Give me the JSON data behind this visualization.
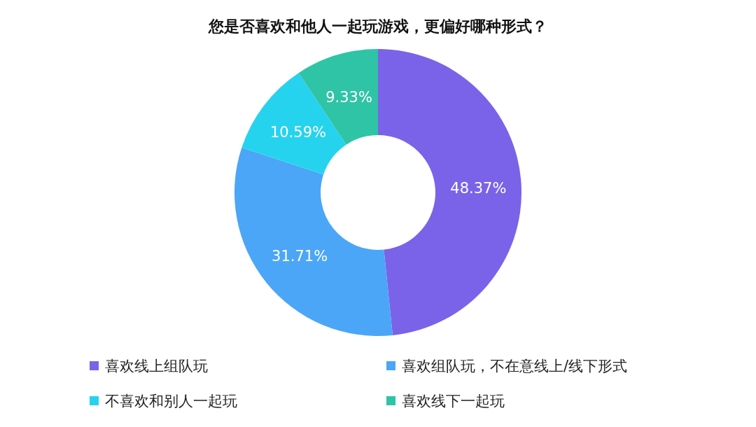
{
  "chart_data": {
    "type": "donut",
    "title": "您是否喜欢和他人一起玩游戏，更偏好哪种形式？",
    "categories": [
      "喜欢线上组队玩",
      "喜欢组队玩，不在意线上/线下形式",
      "不喜欢和别人一起玩",
      "喜欢线下一起玩"
    ],
    "values": [
      48.37,
      31.71,
      10.59,
      9.33
    ],
    "colors": [
      "#7a63e9",
      "#4ba6f7",
      "#25d3ef",
      "#2fc4a6"
    ],
    "value_labels": [
      "48.37%",
      "31.71%",
      "10.59%",
      "9.33%"
    ],
    "legend": "bottom"
  }
}
